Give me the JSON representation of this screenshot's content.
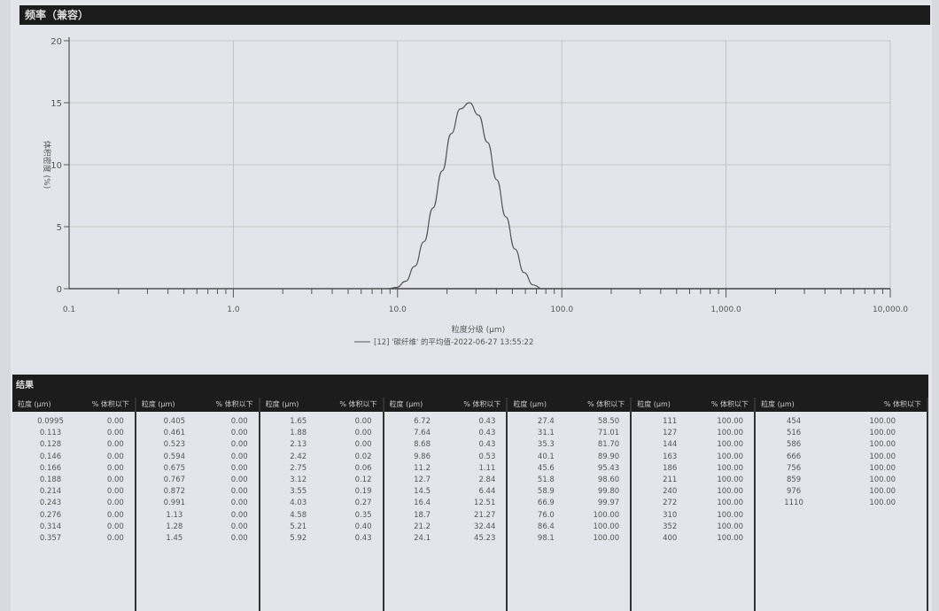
{
  "chart_title": "频率（兼容）",
  "chart_data": {
    "type": "line",
    "title": "频率（兼容）",
    "xlabel": "粒度分级 (μm)",
    "ylabel": "体积密度 (%)",
    "xscale": "log",
    "xlim": [
      0.1,
      10000
    ],
    "ylim": [
      0,
      20
    ],
    "xticks": [
      "0.1",
      "1.0",
      "10.0",
      "100.0",
      "1,000.0",
      "10,000.0"
    ],
    "yticks": [
      "0",
      "5",
      "10",
      "15",
      "20"
    ],
    "grid": true,
    "legend": "bottom",
    "series": [
      {
        "name": "[12] '碳纤维' 的平均值-2022-06-27 13:55:22",
        "color": "#555555",
        "x": [
          8.68,
          9.86,
          11.2,
          12.7,
          14.5,
          16.4,
          18.7,
          21.2,
          24.1,
          27.4,
          31.1,
          35.3,
          40.1,
          45.6,
          51.8,
          58.9,
          66.9,
          76.0
        ],
        "y": [
          0,
          0.1,
          0.6,
          1.8,
          3.8,
          6.5,
          9.5,
          12.5,
          14.5,
          15.0,
          14.0,
          11.8,
          8.8,
          5.8,
          3.2,
          1.3,
          0.3,
          0
        ]
      }
    ]
  },
  "results": {
    "title": "结果",
    "header_size": "粒度 (μm)",
    "header_pct": "% 体积以下",
    "columns": [
      [
        [
          "0.0995",
          "0.00"
        ],
        [
          "0.113",
          "0.00"
        ],
        [
          "0.128",
          "0.00"
        ],
        [
          "0.146",
          "0.00"
        ],
        [
          "0.166",
          "0.00"
        ],
        [
          "0.188",
          "0.00"
        ],
        [
          "0.214",
          "0.00"
        ],
        [
          "0.243",
          "0.00"
        ],
        [
          "0.276",
          "0.00"
        ],
        [
          "0.314",
          "0.00"
        ],
        [
          "0.357",
          "0.00"
        ]
      ],
      [
        [
          "0.405",
          "0.00"
        ],
        [
          "0.461",
          "0.00"
        ],
        [
          "0.523",
          "0.00"
        ],
        [
          "0.594",
          "0.00"
        ],
        [
          "0.675",
          "0.00"
        ],
        [
          "0.767",
          "0.00"
        ],
        [
          "0.872",
          "0.00"
        ],
        [
          "0.991",
          "0.00"
        ],
        [
          "1.13",
          "0.00"
        ],
        [
          "1.28",
          "0.00"
        ],
        [
          "1.45",
          "0.00"
        ]
      ],
      [
        [
          "1.65",
          "0.00"
        ],
        [
          "1.88",
          "0.00"
        ],
        [
          "2.13",
          "0.00"
        ],
        [
          "2.42",
          "0.02"
        ],
        [
          "2.75",
          "0.06"
        ],
        [
          "3.12",
          "0.12"
        ],
        [
          "3.55",
          "0.19"
        ],
        [
          "4.03",
          "0.27"
        ],
        [
          "4.58",
          "0.35"
        ],
        [
          "5.21",
          "0.40"
        ],
        [
          "5.92",
          "0.43"
        ]
      ],
      [
        [
          "6.72",
          "0.43"
        ],
        [
          "7.64",
          "0.43"
        ],
        [
          "8.68",
          "0.43"
        ],
        [
          "9.86",
          "0.53"
        ],
        [
          "11.2",
          "1.11"
        ],
        [
          "12.7",
          "2.84"
        ],
        [
          "14.5",
          "6.44"
        ],
        [
          "16.4",
          "12.51"
        ],
        [
          "18.7",
          "21.27"
        ],
        [
          "21.2",
          "32.44"
        ],
        [
          "24.1",
          "45.23"
        ]
      ],
      [
        [
          "27.4",
          "58.50"
        ],
        [
          "31.1",
          "71.01"
        ],
        [
          "35.3",
          "81.70"
        ],
        [
          "40.1",
          "89.90"
        ],
        [
          "45.6",
          "95.43"
        ],
        [
          "51.8",
          "98.60"
        ],
        [
          "58.9",
          "99.80"
        ],
        [
          "66.9",
          "99.97"
        ],
        [
          "76.0",
          "100.00"
        ],
        [
          "86.4",
          "100.00"
        ],
        [
          "98.1",
          "100.00"
        ]
      ],
      [
        [
          "111",
          "100.00"
        ],
        [
          "127",
          "100.00"
        ],
        [
          "144",
          "100.00"
        ],
        [
          "163",
          "100.00"
        ],
        [
          "186",
          "100.00"
        ],
        [
          "211",
          "100.00"
        ],
        [
          "240",
          "100.00"
        ],
        [
          "272",
          "100.00"
        ],
        [
          "310",
          "100.00"
        ],
        [
          "352",
          "100.00"
        ],
        [
          "400",
          "100.00"
        ]
      ],
      [
        [
          "454",
          "100.00"
        ],
        [
          "516",
          "100.00"
        ],
        [
          "586",
          "100.00"
        ],
        [
          "666",
          "100.00"
        ],
        [
          "756",
          "100.00"
        ],
        [
          "859",
          "100.00"
        ],
        [
          "976",
          "100.00"
        ],
        [
          "1110",
          "100.00"
        ]
      ]
    ]
  }
}
